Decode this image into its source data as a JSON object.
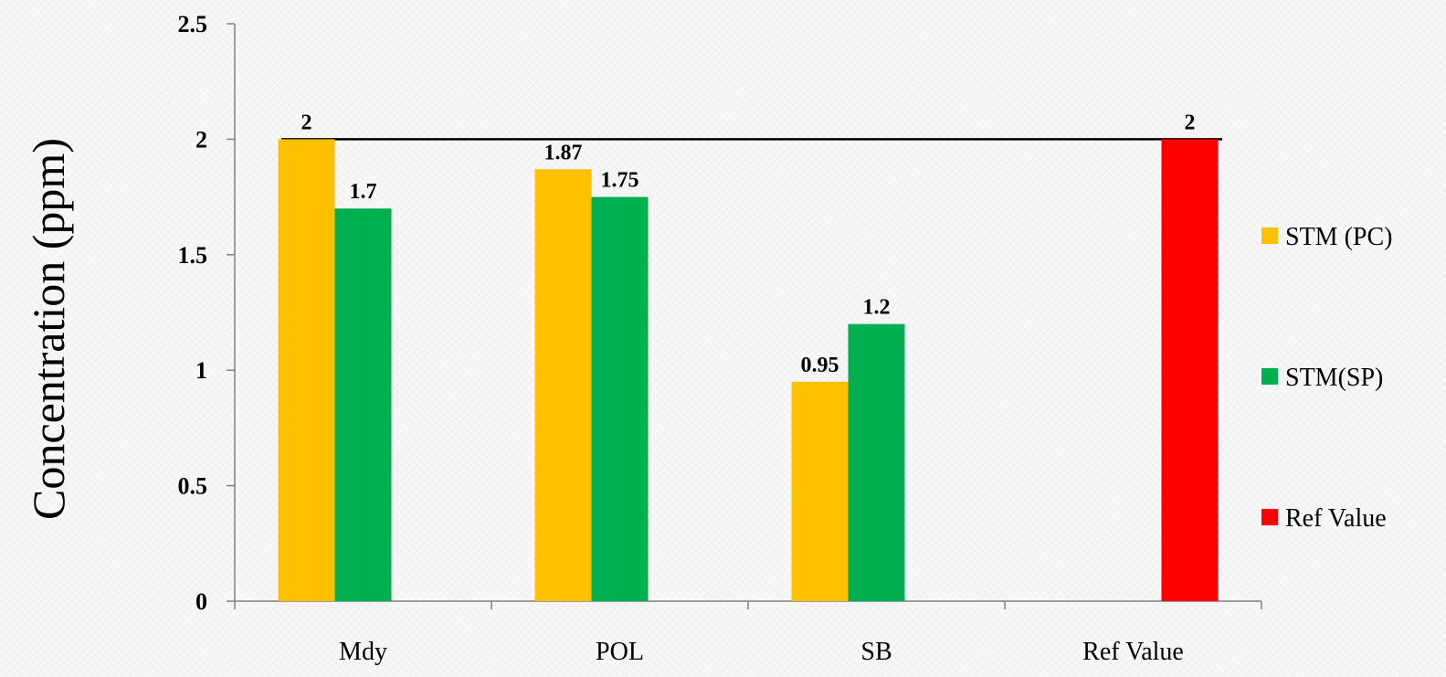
{
  "chart_data": {
    "type": "bar",
    "categories": [
      "Mdy",
      "POL",
      "SB",
      "Ref Value"
    ],
    "series": [
      {
        "name": "STM (PC)",
        "values": [
          2,
          1.87,
          0.95,
          null
        ],
        "color": "#ffc000"
      },
      {
        "name": "STM(SP)",
        "values": [
          1.7,
          1.75,
          1.2,
          null
        ],
        "color": "#00b050"
      },
      {
        "name": "Ref Value",
        "values": [
          null,
          null,
          null,
          2
        ],
        "color": "#ff0000"
      }
    ],
    "reference_line": {
      "value": 2
    },
    "ylabel": "Concentration (ppm)",
    "xlabel": "",
    "ylim": [
      0,
      2.5
    ],
    "yticks": [
      0,
      0.5,
      1,
      1.5,
      2,
      2.5
    ],
    "ytick_labels": [
      "0",
      "0.5",
      "1",
      "1.5",
      "2",
      "2.5"
    ],
    "data_labels": [
      [
        "2",
        "1.87",
        "0.95",
        null
      ],
      [
        "1.7",
        "1.75",
        "1.2",
        null
      ],
      [
        null,
        null,
        null,
        "2"
      ]
    ],
    "legend": "right",
    "grid": false
  }
}
